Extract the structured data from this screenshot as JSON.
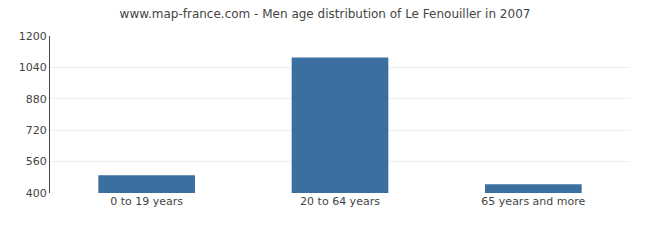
{
  "chart_data": {
    "type": "bar",
    "title": "www.map-france.com - Men age distribution of Le Fenouiller in 2007",
    "categories": [
      "0 to 19 years",
      "20 to 64 years",
      "65 years and more"
    ],
    "values": [
      490,
      1090,
      445
    ],
    "color": "#3a6f9f",
    "ylim": [
      400,
      1200
    ],
    "yticks": [
      400,
      560,
      720,
      880,
      1040,
      1200
    ],
    "grid": true
  }
}
